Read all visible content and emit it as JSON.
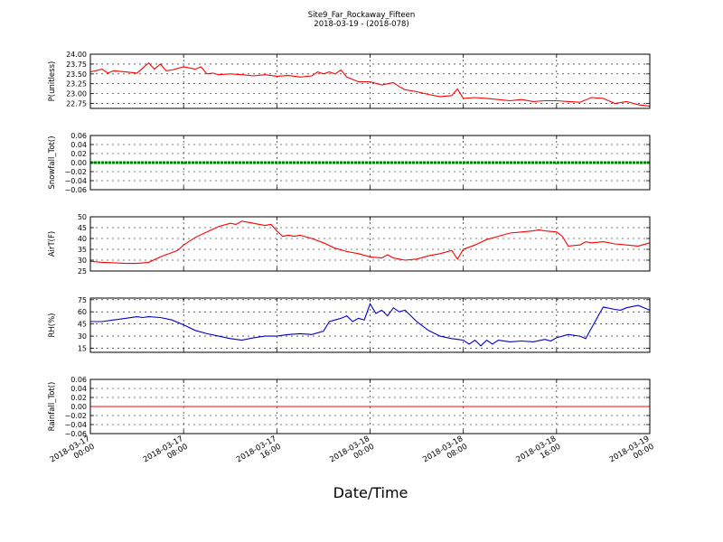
{
  "title": "Site9_Far_Rockaway_Fifteen",
  "subtitle": "2018-03-19 - (2018-078)",
  "xlabel": "Date/Time",
  "x_ticks": [
    {
      "t": 0,
      "line1": "2018-03-17",
      "line2": "00:00"
    },
    {
      "t": 8,
      "line1": "2018-03-17",
      "line2": "08:00"
    },
    {
      "t": 16,
      "line1": "2018-03-17",
      "line2": "16:00"
    },
    {
      "t": 24,
      "line1": "2018-03-18",
      "line2": "00:00"
    },
    {
      "t": 32,
      "line1": "2018-03-18",
      "line2": "08:00"
    },
    {
      "t": 40,
      "line1": "2018-03-18",
      "line2": "16:00"
    },
    {
      "t": 48,
      "line1": "2018-03-19",
      "line2": "00:00"
    }
  ],
  "chart_data": [
    {
      "type": "line",
      "ylabel": "P(unitless)",
      "ylim": [
        22.625,
        24.0
      ],
      "yticks": [
        "22.75",
        "23.00",
        "23.25",
        "23.50",
        "23.75",
        "24.00"
      ],
      "grid": true,
      "color": "#ff0000",
      "series": [
        {
          "x": [
            0,
            1,
            1.5,
            2,
            3,
            4,
            4.5,
            5,
            5.5,
            6,
            6.5,
            7,
            8,
            9,
            9.5,
            10,
            10.5,
            11,
            12,
            13,
            14,
            15,
            16,
            17,
            18,
            19,
            19.5,
            20,
            20.5,
            21,
            21.5,
            22,
            23,
            24,
            25,
            26,
            26.5,
            27,
            28,
            29,
            30,
            31,
            31.5,
            32,
            33,
            34,
            35,
            36,
            37,
            38,
            39,
            40,
            41,
            42,
            43,
            44,
            45,
            46,
            47,
            48
          ],
          "y": [
            23.55,
            23.62,
            23.52,
            23.58,
            23.55,
            23.52,
            23.65,
            23.78,
            23.62,
            23.75,
            23.58,
            23.6,
            23.68,
            23.62,
            23.68,
            23.5,
            23.52,
            23.48,
            23.5,
            23.48,
            23.45,
            23.48,
            23.44,
            23.46,
            23.42,
            23.45,
            23.55,
            23.5,
            23.55,
            23.5,
            23.6,
            23.42,
            23.3,
            23.3,
            23.22,
            23.28,
            23.18,
            23.1,
            23.05,
            22.98,
            22.92,
            22.95,
            23.12,
            22.88,
            22.9,
            22.88,
            22.85,
            22.82,
            22.85,
            22.8,
            22.82,
            22.82,
            22.8,
            22.78,
            22.9,
            22.88,
            22.75,
            22.8,
            22.72,
            22.68
          ]
        }
      ]
    },
    {
      "type": "line",
      "ylabel": "Snowfall_Tot()",
      "ylim": [
        -0.06,
        0.06
      ],
      "yticks": [
        "−0.06",
        "−0.04",
        "−0.02",
        "0.00",
        "0.02",
        "0.04",
        "0.06"
      ],
      "grid": true,
      "color": "#008000",
      "thick": true,
      "series": [
        {
          "x": [
            0,
            48
          ],
          "y": [
            0,
            0
          ]
        }
      ]
    },
    {
      "type": "line",
      "ylabel": "AirT(F)",
      "ylim": [
        25,
        50
      ],
      "yticks": [
        "25",
        "30",
        "35",
        "40",
        "45",
        "50"
      ],
      "grid": true,
      "color": "#ff0000",
      "series": [
        {
          "x": [
            0,
            1,
            2,
            3,
            4,
            5,
            6,
            7,
            7.5,
            8,
            9,
            10,
            11,
            12,
            12.5,
            13,
            14,
            14.5,
            15,
            15.5,
            16,
            16.5,
            17,
            17.5,
            18,
            19,
            20,
            21,
            22,
            23,
            24,
            25,
            25.5,
            26,
            27,
            28,
            29,
            30,
            31,
            31.5,
            32,
            33,
            34,
            35,
            36,
            37,
            38,
            38.5,
            39,
            40,
            40.5,
            41,
            42,
            42.5,
            43,
            44,
            45,
            46,
            47,
            48
          ],
          "y": [
            29.5,
            29.0,
            28.8,
            28.5,
            28.5,
            29.0,
            31.5,
            33.5,
            34.5,
            37.0,
            40.5,
            43.0,
            45.5,
            47.0,
            46.5,
            48.0,
            47.0,
            46.5,
            46.0,
            46.5,
            43.5,
            41.0,
            41.5,
            41.0,
            41.5,
            40.0,
            38.0,
            35.5,
            34.0,
            33.0,
            31.5,
            31.0,
            32.5,
            31.0,
            30.0,
            30.5,
            32.0,
            33.0,
            34.5,
            30.5,
            35.0,
            37.0,
            39.5,
            41.0,
            42.5,
            43.0,
            43.5,
            44.0,
            43.5,
            43.0,
            41.0,
            36.5,
            37.0,
            38.5,
            38.0,
            38.5,
            37.5,
            37.0,
            36.5,
            38.0
          ]
        }
      ]
    },
    {
      "type": "line",
      "ylabel": "RH(%)",
      "ylim": [
        10,
        77
      ],
      "yticks": [
        "15",
        "30",
        "45",
        "60",
        "75"
      ],
      "grid": true,
      "color": "#0000cc",
      "series": [
        {
          "x": [
            0,
            1,
            2,
            3,
            4,
            4.5,
            5,
            6,
            7,
            8,
            9,
            10,
            11,
            12,
            13,
            14,
            15,
            16,
            17,
            18,
            19,
            20,
            20.5,
            21,
            21.5,
            22,
            22.5,
            23,
            23.5,
            24,
            24.5,
            25,
            25.5,
            26,
            26.5,
            27,
            28,
            29,
            30,
            31,
            32,
            32.5,
            33,
            33.5,
            34,
            34.5,
            35,
            36,
            37,
            38,
            39,
            39.5,
            40,
            41,
            42,
            42.5,
            43,
            44,
            45,
            45.5,
            46,
            47,
            47.5,
            48
          ],
          "y": [
            48,
            48,
            50,
            52,
            54,
            53,
            54,
            53,
            50,
            44,
            37,
            33,
            30,
            27,
            25,
            28,
            30,
            30,
            32,
            33,
            32,
            36,
            48,
            50,
            52,
            55,
            48,
            52,
            50,
            70,
            58,
            62,
            55,
            65,
            60,
            62,
            48,
            37,
            30,
            27,
            25,
            20,
            25,
            18,
            25,
            20,
            25,
            23,
            24,
            23,
            26,
            24,
            28,
            32,
            30,
            27,
            40,
            66,
            63,
            62,
            65,
            68,
            65,
            62
          ]
        }
      ]
    },
    {
      "type": "line",
      "ylabel": "Rainfall_Tot()",
      "ylim": [
        -0.06,
        0.06
      ],
      "yticks": [
        "−0.06",
        "−0.04",
        "−0.02",
        "0.00",
        "0.02",
        "0.04",
        "0.06"
      ],
      "grid": true,
      "color": "#ff0000",
      "series": [
        {
          "x": [
            0,
            48
          ],
          "y": [
            0,
            0
          ]
        }
      ]
    }
  ]
}
